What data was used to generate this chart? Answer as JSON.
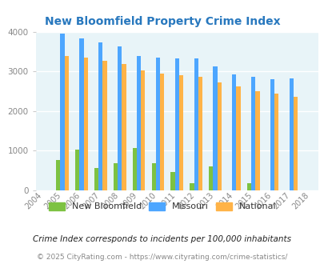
{
  "title": "New Bloomfield Property Crime Index",
  "years": [
    2004,
    2005,
    2006,
    2007,
    2008,
    2009,
    2010,
    2011,
    2012,
    2013,
    2014,
    2015,
    2016,
    2017,
    2018
  ],
  "new_bloomfield": [
    0,
    750,
    1020,
    550,
    670,
    1060,
    670,
    450,
    170,
    600,
    0,
    170,
    0,
    0,
    0
  ],
  "missouri": [
    0,
    3950,
    3830,
    3720,
    3630,
    3380,
    3340,
    3320,
    3320,
    3130,
    2920,
    2870,
    2810,
    2830,
    0
  ],
  "national": [
    0,
    3390,
    3340,
    3260,
    3190,
    3030,
    2940,
    2900,
    2860,
    2720,
    2610,
    2490,
    2440,
    2360,
    0
  ],
  "bar_width": 0.22,
  "color_nb": "#7dc242",
  "color_mo": "#4da6ff",
  "color_nat": "#ffb347",
  "bg_color": "#e8f4f8",
  "title_color": "#2878be",
  "grid_color": "#ffffff",
  "ylim": [
    0,
    4000
  ],
  "yticks": [
    0,
    1000,
    2000,
    3000,
    4000
  ],
  "footnote1": "Crime Index corresponds to incidents per 100,000 inhabitants",
  "footnote2": "© 2025 CityRating.com - https://www.cityrating.com/crime-statistics/",
  "footnote1_color": "#222222",
  "footnote2_color": "#888888",
  "legend_labels": [
    "New Bloomfield",
    "Missouri",
    "National"
  ],
  "legend_label_color": "#333333"
}
